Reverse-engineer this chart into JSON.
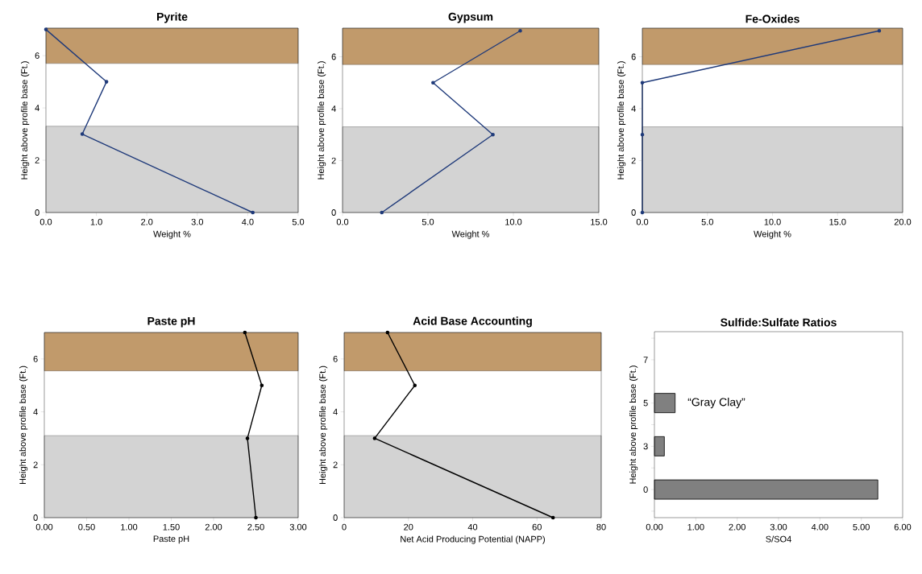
{
  "chart_data": [
    {
      "type": "line",
      "title": "Pyrite",
      "xlabel": "Weight %",
      "ylabel": "Height above profile base (Ft.)",
      "x": [
        4.1,
        0.72,
        1.2,
        0.0
      ],
      "values": [
        0,
        3,
        5,
        7
      ],
      "color": "#1f3a7a",
      "marker": "circle",
      "xlim": [
        0,
        5
      ],
      "ylim": [
        0,
        7.05
      ],
      "xticks": [
        {
          "value": 0,
          "label": "0.0"
        },
        {
          "value": 1,
          "label": "1.0"
        },
        {
          "value": 2,
          "label": "2.0"
        },
        {
          "value": 3,
          "label": "3.0"
        },
        {
          "value": 4,
          "label": "4.0"
        },
        {
          "value": 5,
          "label": "5.0"
        }
      ],
      "yticks": [
        0,
        2,
        4,
        6
      ],
      "bands": [
        {
          "axis": "y",
          "from": 0,
          "to": 3.3,
          "color": "#d3d3d3"
        },
        {
          "axis": "y",
          "from": 5.7,
          "to": 7.05,
          "color": "#c19a6b"
        }
      ]
    },
    {
      "type": "line",
      "title": "Gypsum",
      "xlabel": "Weight %",
      "ylabel": "Height above profile base (Ft.)",
      "x": [
        2.3,
        8.8,
        5.3,
        10.4
      ],
      "values": [
        0,
        3,
        5,
        7
      ],
      "color": "#1f3a7a",
      "marker": "circle",
      "xlim": [
        0,
        15
      ],
      "ylim": [
        0,
        7.1
      ],
      "xticks": [
        {
          "value": 0,
          "label": "0.0"
        },
        {
          "value": 5,
          "label": "5.0"
        },
        {
          "value": 10,
          "label": "10.0"
        },
        {
          "value": 15,
          "label": "15.0"
        }
      ],
      "yticks": [
        0,
        2,
        4,
        6
      ],
      "bands": [
        {
          "axis": "y",
          "from": 0,
          "to": 3.3,
          "color": "#d3d3d3"
        },
        {
          "axis": "y",
          "from": 5.7,
          "to": 7.1,
          "color": "#c19a6b"
        }
      ]
    },
    {
      "type": "line",
      "title": "Fe-Oxides",
      "xlabel": "Weight %",
      "ylabel": "Height above profile base (Ft.)",
      "x": [
        0,
        0,
        0,
        18.2
      ],
      "values": [
        0,
        3,
        5,
        7
      ],
      "color": "#1f3a7a",
      "marker": "circle",
      "xlim": [
        0,
        20
      ],
      "ylim": [
        0,
        7.1
      ],
      "xticks": [
        {
          "value": 0,
          "label": "0.0"
        },
        {
          "value": 5,
          "label": "5.0"
        },
        {
          "value": 10,
          "label": "10.0"
        },
        {
          "value": 15,
          "label": "15.0"
        },
        {
          "value": 20,
          "label": "20.0"
        }
      ],
      "yticks": [
        0,
        2,
        4,
        6
      ],
      "bands": [
        {
          "axis": "y",
          "from": 0,
          "to": 3.3,
          "color": "#d3d3d3"
        },
        {
          "axis": "y",
          "from": 5.7,
          "to": 7.1,
          "color": "#c19a6b"
        }
      ]
    },
    {
      "type": "line",
      "title": "Paste pH",
      "xlabel": "Paste pH",
      "ylabel": "Height above profile base (Ft.)",
      "x": [
        2.5,
        2.4,
        2.57,
        2.37
      ],
      "values": [
        0,
        3,
        5,
        7
      ],
      "color": "#000000",
      "marker": "circle",
      "xlim": [
        0,
        3
      ],
      "ylim": [
        0,
        7
      ],
      "xticks": [
        {
          "value": 0,
          "label": "0.00"
        },
        {
          "value": 0.5,
          "label": "0.50"
        },
        {
          "value": 1,
          "label": "1.00"
        },
        {
          "value": 1.5,
          "label": "1.50"
        },
        {
          "value": 2,
          "label": "2.00"
        },
        {
          "value": 2.5,
          "label": "2.50"
        },
        {
          "value": 3,
          "label": "3.00"
        }
      ],
      "yticks": [
        0,
        2,
        4,
        6
      ],
      "bands": [
        {
          "axis": "y",
          "from": 0,
          "to": 3.1,
          "color": "#d3d3d3"
        },
        {
          "axis": "y",
          "from": 5.55,
          "to": 7,
          "color": "#c19a6b"
        }
      ]
    },
    {
      "type": "line",
      "title": "Acid Base Accounting",
      "xlabel": "Net Acid Producing Potential (NAPP)",
      "ylabel": "Height above profile base (Ft.)",
      "x": [
        65,
        9.5,
        22,
        13.5
      ],
      "values": [
        0,
        3,
        5,
        7
      ],
      "color": "#000000",
      "marker": "circle",
      "xlim": [
        0,
        80
      ],
      "ylim": [
        0,
        7
      ],
      "xticks": [
        0,
        20,
        40,
        60,
        80
      ],
      "yticks": [
        0,
        2,
        4,
        6
      ],
      "bands": [
        {
          "axis": "y",
          "from": 0,
          "to": 3.1,
          "color": "#d3d3d3"
        },
        {
          "axis": "y",
          "from": 5.55,
          "to": 7,
          "color": "#c19a6b"
        }
      ]
    },
    {
      "type": "bar",
      "orientation": "horizontal",
      "title": "Sulfide:Sulfate Ratios",
      "xlabel": "S/SO4",
      "ylabel": "Height above profile base (Ft.)",
      "categories": [
        "7",
        "5",
        "3",
        "0"
      ],
      "values": [
        null,
        0.5,
        0.24,
        5.4
      ],
      "color": "#808080",
      "xlim": [
        0,
        6
      ],
      "xticks": [
        {
          "value": 0,
          "label": "0.00"
        },
        {
          "value": 1,
          "label": "1.00"
        },
        {
          "value": 2,
          "label": "2.00"
        },
        {
          "value": 3,
          "label": "3.00"
        },
        {
          "value": 4,
          "label": "4.00"
        },
        {
          "value": 5,
          "label": "5.00"
        },
        {
          "value": 6,
          "label": "6.00"
        }
      ],
      "annotations": [
        {
          "text": "“Gray Clay”",
          "x": 0.5,
          "y": "5"
        }
      ]
    }
  ]
}
